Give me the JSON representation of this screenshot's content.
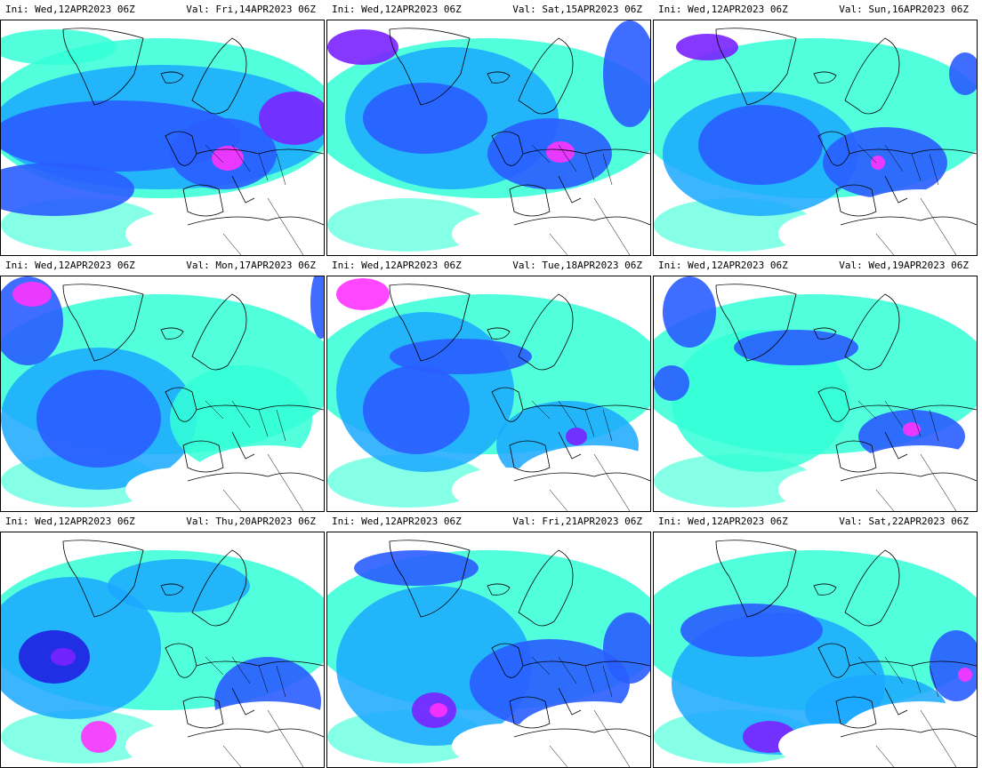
{
  "panels": [
    {
      "ini": "Ini: Wed,12APR2023 06Z",
      "val": "Val: Fri,14APR2023 06Z"
    },
    {
      "ini": "Ini: Wed,12APR2023 06Z",
      "val": "Val: Sat,15APR2023 06Z"
    },
    {
      "ini": "Ini: Wed,12APR2023 06Z",
      "val": "Val: Sun,16APR2023 06Z"
    },
    {
      "ini": "Ini: Wed,12APR2023 06Z",
      "val": "Val: Mon,17APR2023 06Z"
    },
    {
      "ini": "Ini: Wed,12APR2023 06Z",
      "val": "Val: Tue,18APR2023 06Z"
    },
    {
      "ini": "Ini: Wed,12APR2023 06Z",
      "val": "Val: Wed,19APR2023 06Z"
    },
    {
      "ini": "Ini: Wed,12APR2023 06Z",
      "val": "Val: Thu,20APR2023 06Z"
    },
    {
      "ini": "Ini: Wed,12APR2023 06Z",
      "val": "Val: Fri,21APR2023 06Z"
    },
    {
      "ini": "Ini: Wed,12APR2023 06Z",
      "val": "Val: Sat,22APR2023 06Z"
    }
  ],
  "colors": {
    "light": "#33ffd6",
    "mid": "#1aa8ff",
    "blue": "#2a5dff",
    "deep": "#2020e0",
    "violet": "#7a22ff",
    "magenta": "#ff33ff",
    "coast": "#000000"
  }
}
